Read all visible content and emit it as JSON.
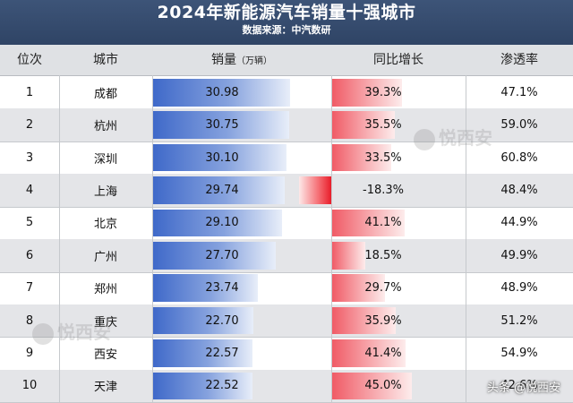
{
  "title": "2024年新能源汽车销量十强城市",
  "subtitle": "数据来源：中汽数研",
  "columns": {
    "rank": "位次",
    "city": "城市",
    "sales": "销量",
    "sales_unit": "（万辆）",
    "yoy": "同比增长",
    "penetration": "渗透率"
  },
  "watermark": "悦西安",
  "footer": "头条 @悦西安",
  "chart_data": {
    "type": "table",
    "rows": [
      {
        "rank": "1",
        "city": "成都",
        "sales": "30.98",
        "yoy": "39.3%",
        "penetration": "47.1%"
      },
      {
        "rank": "2",
        "city": "杭州",
        "sales": "30.75",
        "yoy": "35.5%",
        "penetration": "59.0%"
      },
      {
        "rank": "3",
        "city": "深圳",
        "sales": "30.10",
        "yoy": "33.5%",
        "penetration": "60.8%"
      },
      {
        "rank": "4",
        "city": "上海",
        "sales": "29.74",
        "yoy": "-18.3%",
        "penetration": "48.4%"
      },
      {
        "rank": "5",
        "city": "北京",
        "sales": "29.10",
        "yoy": "41.1%",
        "penetration": "44.9%"
      },
      {
        "rank": "6",
        "city": "广州",
        "sales": "27.70",
        "yoy": "18.5%",
        "penetration": "49.9%"
      },
      {
        "rank": "7",
        "city": "郑州",
        "sales": "23.74",
        "yoy": "29.7%",
        "penetration": "48.9%"
      },
      {
        "rank": "8",
        "city": "重庆",
        "sales": "22.70",
        "yoy": "35.9%",
        "penetration": "51.2%"
      },
      {
        "rank": "9",
        "city": "西安",
        "sales": "22.57",
        "yoy": "41.4%",
        "penetration": "54.9%"
      },
      {
        "rank": "10",
        "city": "天津",
        "sales": "22.52",
        "yoy": "45.0%",
        "penetration": "42.6%"
      }
    ]
  }
}
